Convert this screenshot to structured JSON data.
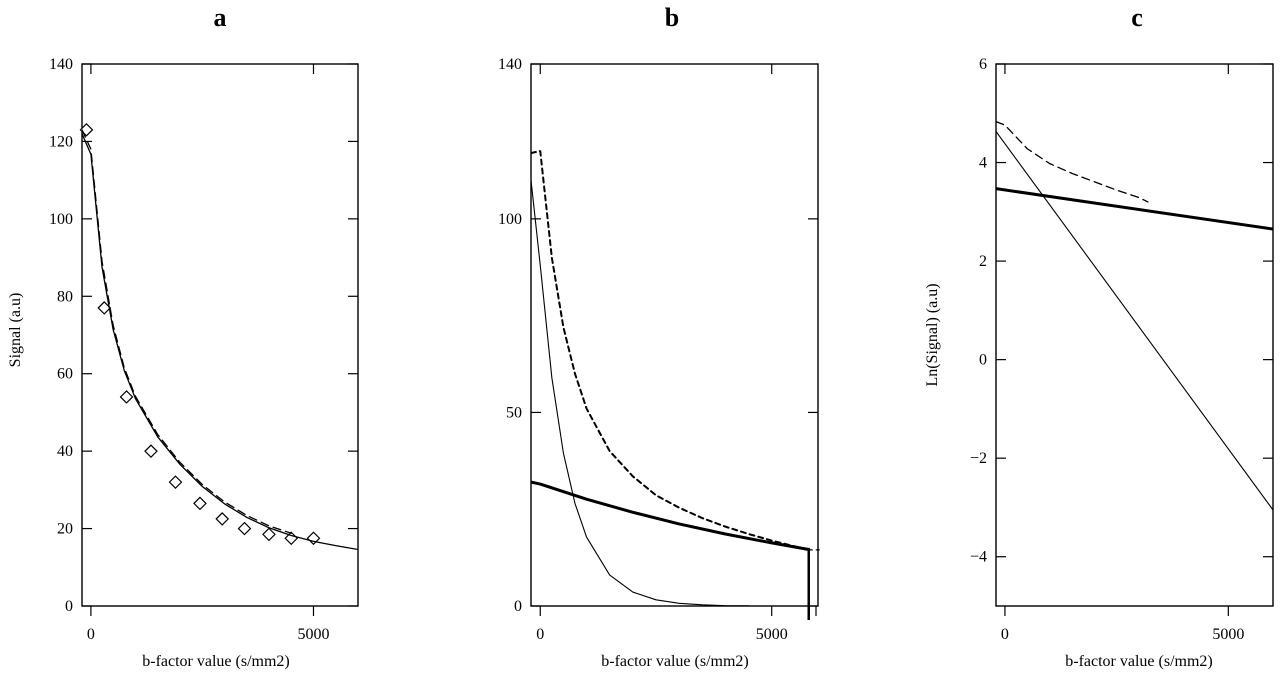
{
  "chart_data": [
    {
      "type": "scatter",
      "panel_label": "a",
      "xlabel": "b-factor value (s/mm2)",
      "ylabel": "Signal (a.u)",
      "xlim": [
        -200,
        6000
      ],
      "ylim": [
        0,
        140
      ],
      "xticks": [
        0,
        5000
      ],
      "yticks": [
        0,
        20,
        40,
        60,
        80,
        100,
        120,
        140
      ],
      "grid": false,
      "series": [
        {
          "style": "diamond-markers",
          "x": [
            -100,
            300,
            800,
            1350,
            1900,
            2450,
            2950,
            3450,
            4000,
            4500,
            5000
          ],
          "y": [
            123,
            77,
            54,
            40,
            32,
            26.5,
            22.5,
            20,
            18.5,
            17.5,
            17.5
          ]
        },
        {
          "style": "solid",
          "x": [
            -200,
            0,
            250,
            500,
            750,
            1000,
            1500,
            2000,
            2500,
            3000,
            3500,
            4000,
            4500,
            5000,
            5500,
            6000
          ],
          "y": [
            122,
            116.7,
            87.5,
            71.4,
            60.8,
            53.6,
            43.7,
            36.6,
            30.9,
            26.4,
            22.9,
            20.2,
            18.2,
            16.7,
            15.6,
            14.6
          ]
        },
        {
          "style": "dashed",
          "x": [
            -200,
            0,
            250,
            500,
            750,
            1000,
            1500,
            2000,
            2500,
            3000,
            3500,
            4000,
            4500
          ],
          "y": [
            123,
            118,
            89,
            72.5,
            61.5,
            54.2,
            44.3,
            37.1,
            31.4,
            26.9,
            23.4,
            20.7,
            18.8
          ]
        }
      ]
    },
    {
      "type": "line",
      "panel_label": "b",
      "xlabel": "b-factor value (s/mm2)",
      "ylabel": "",
      "xlim": [
        -200,
        6000
      ],
      "ylim": [
        0,
        140
      ],
      "xticks": [
        0,
        5000
      ],
      "yticks": [
        0,
        50,
        100,
        140
      ],
      "grid": false,
      "series": [
        {
          "style": "thin-solid",
          "x": [
            -200,
            0,
            250,
            500,
            750,
            1000,
            1500,
            2000,
            2500,
            3000,
            3500,
            4000,
            4500
          ],
          "y": [
            110,
            88,
            59,
            39.5,
            26.5,
            17.8,
            8,
            3.6,
            1.6,
            0.7,
            0.3,
            0.1,
            0.05
          ]
        },
        {
          "style": "dotted",
          "x": [
            -200,
            0,
            250,
            500,
            750,
            1000,
            1500,
            2000,
            2500,
            3000,
            3500,
            4000,
            4500,
            5000,
            5500,
            5800
          ],
          "y": [
            117,
            117.5,
            90,
            72,
            60,
            51,
            40,
            33.5,
            28.6,
            25.4,
            22.7,
            20.5,
            18.6,
            16.9,
            15.4,
            14.5
          ]
        },
        {
          "style": "thick-solid",
          "x": [
            -200,
            0,
            1000,
            2000,
            3000,
            4000,
            5000,
            5800
          ],
          "y": [
            32,
            31.5,
            27.6,
            24.2,
            21.2,
            18.6,
            16.3,
            14.6
          ]
        }
      ]
    },
    {
      "type": "line",
      "panel_label": "c",
      "xlabel": "b-factor value (s/mm2)",
      "ylabel": "Ln(Signal) (a.u)",
      "xlim": [
        -200,
        6000
      ],
      "ylim": [
        -5,
        6
      ],
      "xticks": [
        0,
        5000
      ],
      "yticks": [
        -4,
        -2,
        0,
        2,
        4,
        6
      ],
      "grid": false,
      "series": [
        {
          "style": "thin-solid",
          "x": [
            -200,
            6000
          ],
          "y": [
            4.63,
            -3.05
          ]
        },
        {
          "style": "dashed",
          "x": [
            -200,
            0,
            500,
            1000,
            1500,
            2000,
            2500,
            3000,
            3200
          ],
          "y": [
            4.83,
            4.76,
            4.28,
            3.98,
            3.78,
            3.61,
            3.44,
            3.29,
            3.2
          ]
        },
        {
          "style": "thick-solid",
          "x": [
            -200,
            6000
          ],
          "y": [
            3.47,
            2.65
          ]
        }
      ]
    }
  ]
}
